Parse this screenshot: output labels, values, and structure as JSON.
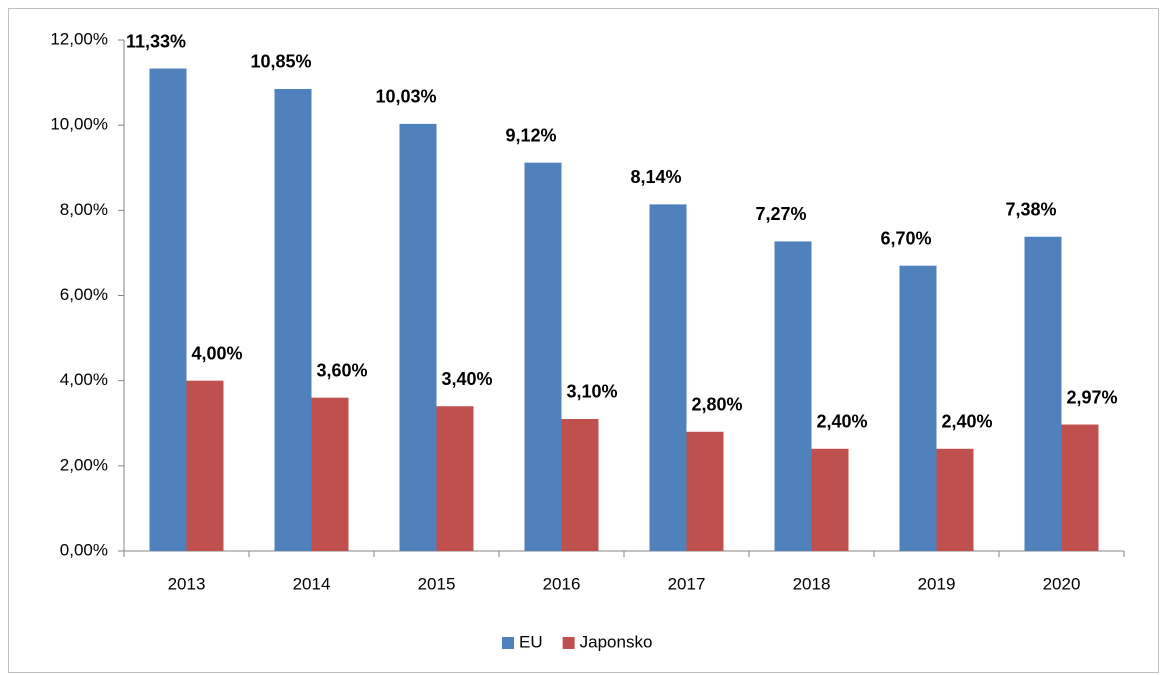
{
  "chart_data": {
    "type": "bar",
    "categories": [
      "2013",
      "2014",
      "2015",
      "2016",
      "2017",
      "2018",
      "2019",
      "2020"
    ],
    "series": [
      {
        "name": "EU",
        "color": "#4f81bd",
        "values": [
          11.33,
          10.85,
          10.03,
          9.12,
          8.14,
          7.27,
          6.7,
          7.38
        ],
        "value_labels": [
          "11,33%",
          "10,85%",
          "10,03%",
          "9,12%",
          "8,14%",
          "7,27%",
          "6,70%",
          "7,38%"
        ]
      },
      {
        "name": "Japonsko",
        "color": "#c0504d",
        "values": [
          4.0,
          3.6,
          3.4,
          3.1,
          2.8,
          2.4,
          2.4,
          2.97
        ],
        "value_labels": [
          "4,00%",
          "3,60%",
          "3,40%",
          "3,10%",
          "2,80%",
          "2,40%",
          "2,40%",
          "2,97%"
        ]
      }
    ],
    "ylim": [
      0,
      12
    ],
    "yticks": [
      {
        "value": 0,
        "label": "0,00%"
      },
      {
        "value": 2,
        "label": "2,00%"
      },
      {
        "value": 4,
        "label": "4,00%"
      },
      {
        "value": 6,
        "label": "6,00%"
      },
      {
        "value": 8,
        "label": "8,00%"
      },
      {
        "value": 10,
        "label": "10,00%"
      },
      {
        "value": 12,
        "label": "12,00%"
      }
    ],
    "legend": "bottom"
  }
}
